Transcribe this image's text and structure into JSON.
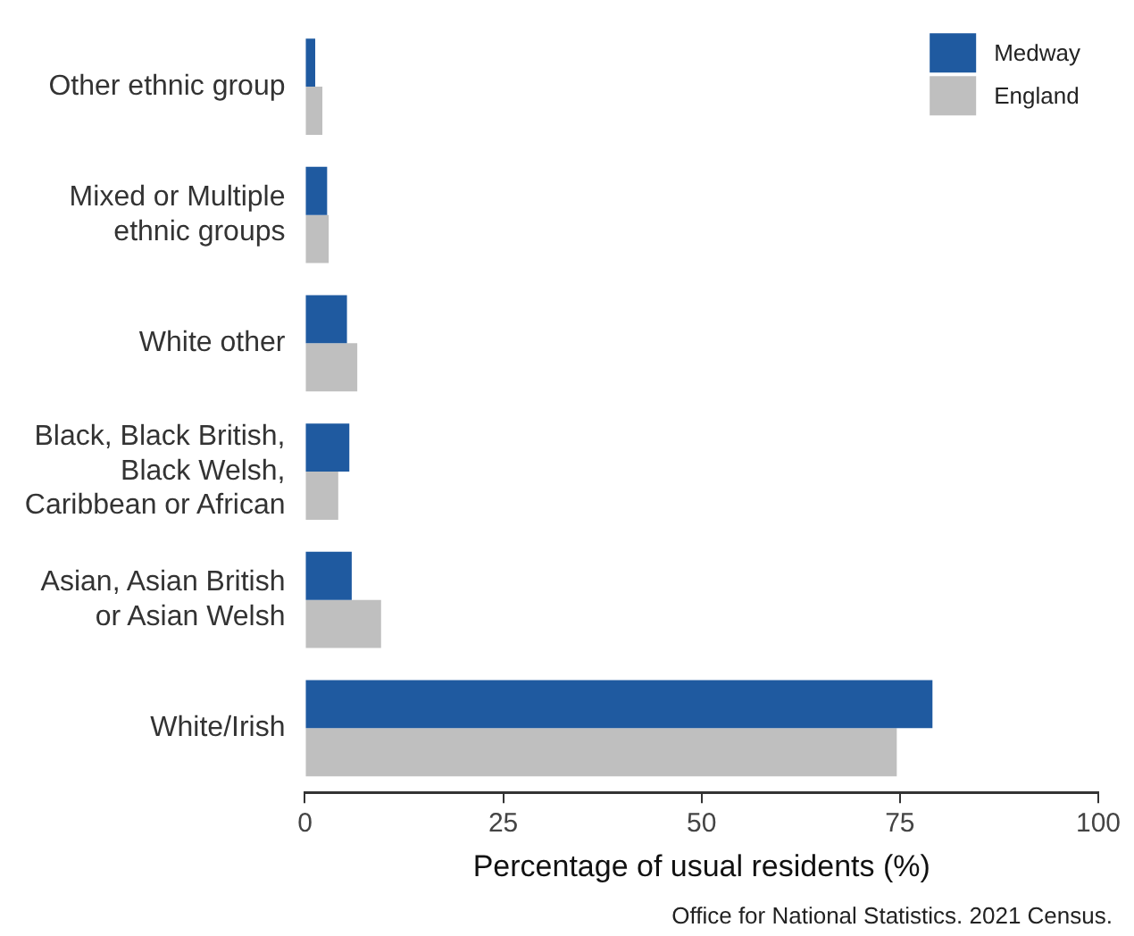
{
  "chart_data": {
    "type": "bar",
    "orientation": "horizontal",
    "categories": [
      "Other ethnic group",
      "Mixed or Multiple ethnic groups",
      "White other",
      "Black, Black British, Black Welsh, Caribbean or African",
      "Asian, Asian British or Asian Welsh",
      "White/Irish"
    ],
    "series": [
      {
        "name": "Medway",
        "color": "#1f5aa0",
        "values": [
          1.3,
          2.8,
          5.3,
          5.6,
          5.9,
          79.1
        ]
      },
      {
        "name": "England",
        "color": "#bfbfbf",
        "values": [
          2.2,
          3.0,
          6.6,
          4.2,
          9.6,
          74.6
        ]
      }
    ],
    "xlabel": "Percentage of usual residents (%)",
    "xlim": [
      0,
      100
    ],
    "xticks": [
      0,
      25,
      50,
      75,
      100
    ],
    "grid": false,
    "legend": "top right",
    "annotations": [
      "Office for National Statistics. 2021 Census."
    ]
  }
}
